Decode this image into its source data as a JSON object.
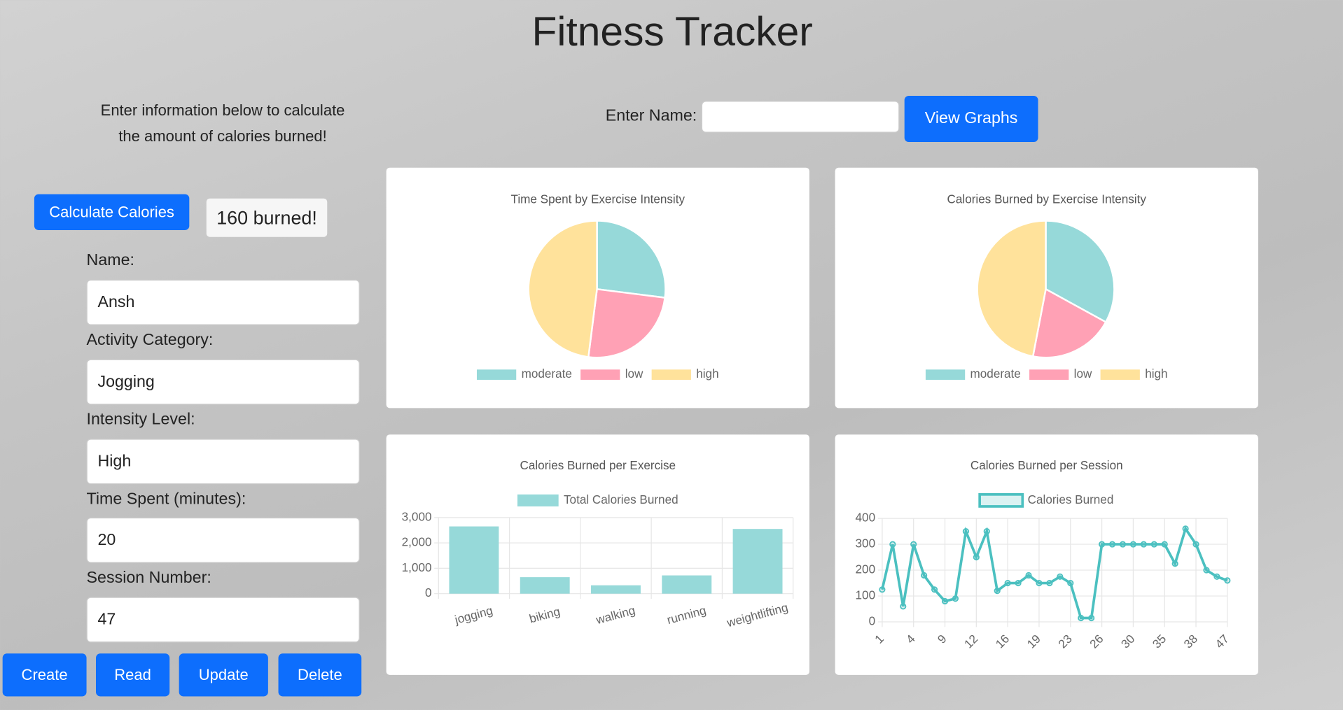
{
  "header": {
    "title": "Fitness Tracker"
  },
  "intro": {
    "line1": "Enter information below to calculate",
    "line2": "the amount of calories burned!"
  },
  "search": {
    "label": "Enter Name:",
    "value": "",
    "button": "View Graphs"
  },
  "calculator": {
    "button": "Calculate Calories",
    "result": "160 burned!"
  },
  "form": {
    "fields": [
      {
        "label": "Name:",
        "value": "Ansh"
      },
      {
        "label": "Activity Category:",
        "value": "Jogging"
      },
      {
        "label": "Intensity Level:",
        "value": "High"
      },
      {
        "label": "Time Spent (minutes):",
        "value": "20"
      },
      {
        "label": "Session Number:",
        "value": "47"
      }
    ]
  },
  "actions": [
    "Create",
    "Read",
    "Update",
    "Delete"
  ],
  "chart_data": [
    {
      "type": "pie",
      "title": "Time Spent by Exercise Intensity",
      "categories": [
        "moderate",
        "low",
        "high"
      ],
      "values": [
        27,
        25,
        48
      ],
      "colors": [
        "#96d9d9",
        "#ffa1b5",
        "#ffe29b"
      ]
    },
    {
      "type": "pie",
      "title": "Calories Burned by Exercise Intensity",
      "categories": [
        "moderate",
        "low",
        "high"
      ],
      "values": [
        33,
        20,
        47
      ],
      "colors": [
        "#96d9d9",
        "#ffa1b5",
        "#ffe29b"
      ]
    },
    {
      "type": "bar",
      "title": "Calories Burned per Exercise",
      "categories": [
        "jogging",
        "biking",
        "walking",
        "running",
        "weightlifting"
      ],
      "series": [
        {
          "name": "Total Calories Burned",
          "color": "#96d9d9",
          "values": [
            2650,
            650,
            330,
            720,
            2550
          ]
        }
      ],
      "ylim": [
        0,
        3000
      ],
      "yticks": [
        0,
        {
          "value": 1000,
          "label": "1,000"
        },
        {
          "value": 2000,
          "label": "2,000"
        },
        {
          "value": 3000,
          "label": "3,000"
        }
      ],
      "grid": true
    },
    {
      "type": "line",
      "title": "Calories Burned per Session",
      "categories": [
        "1",
        null,
        null,
        "4",
        null,
        null,
        "9",
        null,
        null,
        "12",
        null,
        null,
        "16",
        null,
        null,
        "19",
        null,
        null,
        "23",
        null,
        null,
        "26",
        null,
        null,
        "30",
        null,
        null,
        "35",
        null,
        null,
        "38",
        null,
        null,
        "47"
      ],
      "series": [
        {
          "name": "Calories Burned",
          "color": "#4bc0c0",
          "values": [
            125,
            300,
            60,
            300,
            180,
            125,
            80,
            90,
            350,
            250,
            350,
            120,
            150,
            150,
            180,
            150,
            150,
            175,
            150,
            15,
            15,
            300,
            300,
            300,
            300,
            300,
            300,
            300,
            225,
            360,
            300,
            200,
            175,
            160
          ]
        }
      ],
      "ylim": [
        0,
        400
      ],
      "yticks": [
        0,
        100,
        200,
        300,
        400
      ],
      "grid": true
    }
  ]
}
